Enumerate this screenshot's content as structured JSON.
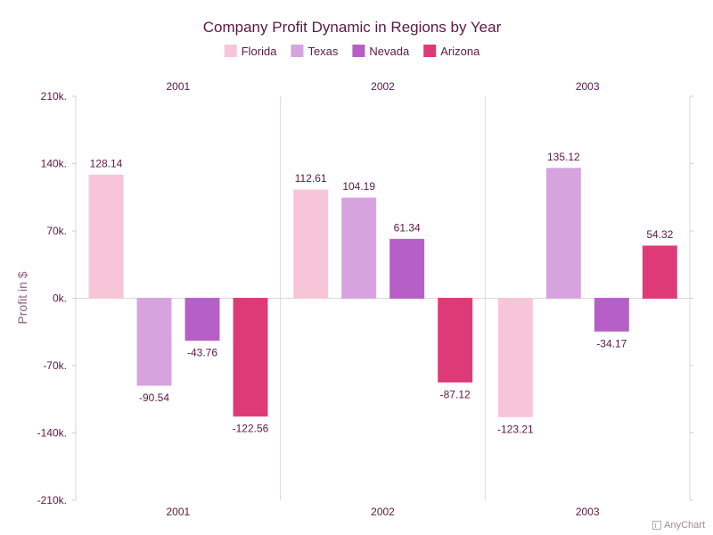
{
  "chart_data": {
    "type": "bar",
    "title": "Company Profit Dynamic in Regions by Year",
    "ylabel": "Profit in $",
    "categories": [
      "2001",
      "2002",
      "2003"
    ],
    "ylim": [
      -210,
      210
    ],
    "yticks": [
      210,
      140,
      70,
      0,
      -70,
      -140,
      -210
    ],
    "ytick_labels": [
      "210k.",
      "140k.",
      "70k.",
      "0k.",
      "-70k.",
      "-140k.",
      "-210k."
    ],
    "legend_position": "top-center",
    "grid": "vertical category separators only",
    "series": [
      {
        "name": "Florida",
        "color": "#f8c5d8",
        "values": [
          128.14,
          112.61,
          -123.21
        ],
        "labels": [
          "128.14",
          "112.61",
          "-123.21"
        ]
      },
      {
        "name": "Texas",
        "color": "#d6a3df",
        "values": [
          -90.54,
          104.19,
          135.12
        ],
        "labels": [
          "-90.54",
          "104.19",
          "135.12"
        ]
      },
      {
        "name": "Nevada",
        "color": "#b65fc6",
        "values": [
          -43.76,
          61.34,
          -34.17
        ],
        "labels": [
          "-43.76",
          "61.34",
          "-34.17"
        ]
      },
      {
        "name": "Arizona",
        "color": "#df3a78",
        "values": [
          -122.56,
          -87.12,
          54.32
        ],
        "labels": [
          "-122.56",
          "-87.12",
          "54.32"
        ]
      }
    ]
  },
  "credit": {
    "text": "AnyChart"
  }
}
